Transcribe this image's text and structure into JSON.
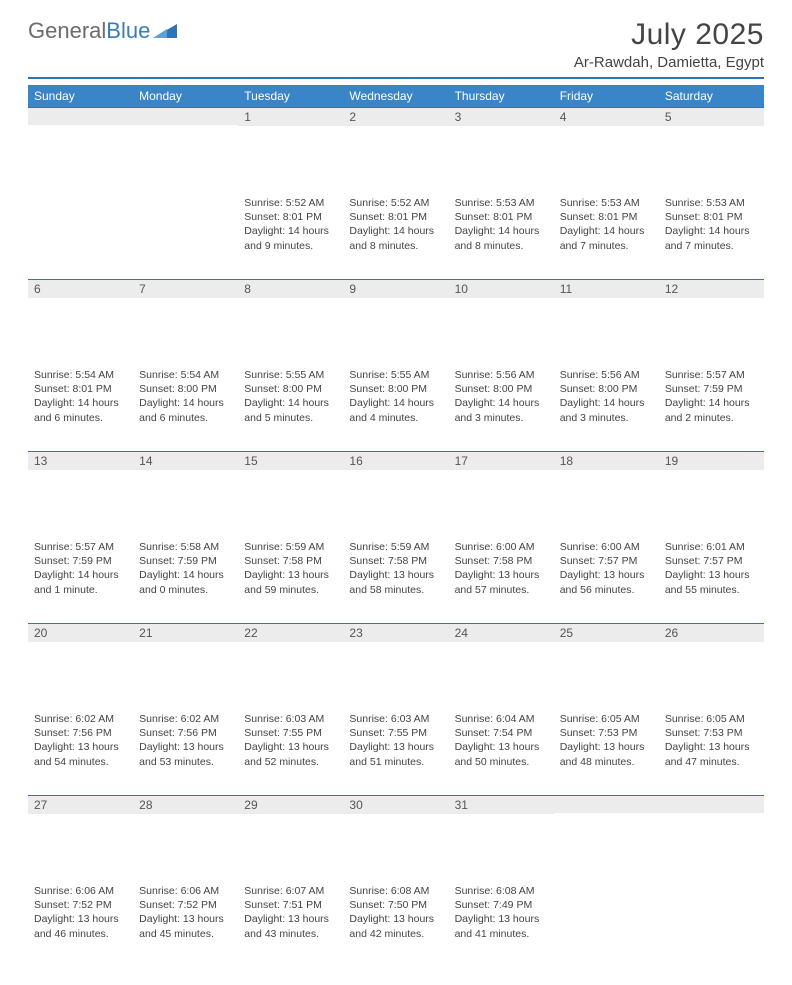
{
  "brand": {
    "part1": "General",
    "part2": "Blue"
  },
  "title": "July 2025",
  "location": "Ar-Rawdah, Damietta, Egypt",
  "colors": {
    "header_bg": "#3a84c8",
    "header_text": "#ffffff",
    "rule": "#2f74b5",
    "daynum_bg": "#ececec",
    "text": "#444444",
    "brand_grey": "#6b6b6b",
    "brand_blue": "#3a7abf"
  },
  "weekdays": [
    "Sunday",
    "Monday",
    "Tuesday",
    "Wednesday",
    "Thursday",
    "Friday",
    "Saturday"
  ],
  "weeks": [
    [
      null,
      null,
      {
        "n": "1",
        "sunrise": "5:52 AM",
        "sunset": "8:01 PM",
        "daylight": "14 hours and 9 minutes."
      },
      {
        "n": "2",
        "sunrise": "5:52 AM",
        "sunset": "8:01 PM",
        "daylight": "14 hours and 8 minutes."
      },
      {
        "n": "3",
        "sunrise": "5:53 AM",
        "sunset": "8:01 PM",
        "daylight": "14 hours and 8 minutes."
      },
      {
        "n": "4",
        "sunrise": "5:53 AM",
        "sunset": "8:01 PM",
        "daylight": "14 hours and 7 minutes."
      },
      {
        "n": "5",
        "sunrise": "5:53 AM",
        "sunset": "8:01 PM",
        "daylight": "14 hours and 7 minutes."
      }
    ],
    [
      {
        "n": "6",
        "sunrise": "5:54 AM",
        "sunset": "8:01 PM",
        "daylight": "14 hours and 6 minutes."
      },
      {
        "n": "7",
        "sunrise": "5:54 AM",
        "sunset": "8:00 PM",
        "daylight": "14 hours and 6 minutes."
      },
      {
        "n": "8",
        "sunrise": "5:55 AM",
        "sunset": "8:00 PM",
        "daylight": "14 hours and 5 minutes."
      },
      {
        "n": "9",
        "sunrise": "5:55 AM",
        "sunset": "8:00 PM",
        "daylight": "14 hours and 4 minutes."
      },
      {
        "n": "10",
        "sunrise": "5:56 AM",
        "sunset": "8:00 PM",
        "daylight": "14 hours and 3 minutes."
      },
      {
        "n": "11",
        "sunrise": "5:56 AM",
        "sunset": "8:00 PM",
        "daylight": "14 hours and 3 minutes."
      },
      {
        "n": "12",
        "sunrise": "5:57 AM",
        "sunset": "7:59 PM",
        "daylight": "14 hours and 2 minutes."
      }
    ],
    [
      {
        "n": "13",
        "sunrise": "5:57 AM",
        "sunset": "7:59 PM",
        "daylight": "14 hours and 1 minute."
      },
      {
        "n": "14",
        "sunrise": "5:58 AM",
        "sunset": "7:59 PM",
        "daylight": "14 hours and 0 minutes."
      },
      {
        "n": "15",
        "sunrise": "5:59 AM",
        "sunset": "7:58 PM",
        "daylight": "13 hours and 59 minutes."
      },
      {
        "n": "16",
        "sunrise": "5:59 AM",
        "sunset": "7:58 PM",
        "daylight": "13 hours and 58 minutes."
      },
      {
        "n": "17",
        "sunrise": "6:00 AM",
        "sunset": "7:58 PM",
        "daylight": "13 hours and 57 minutes."
      },
      {
        "n": "18",
        "sunrise": "6:00 AM",
        "sunset": "7:57 PM",
        "daylight": "13 hours and 56 minutes."
      },
      {
        "n": "19",
        "sunrise": "6:01 AM",
        "sunset": "7:57 PM",
        "daylight": "13 hours and 55 minutes."
      }
    ],
    [
      {
        "n": "20",
        "sunrise": "6:02 AM",
        "sunset": "7:56 PM",
        "daylight": "13 hours and 54 minutes."
      },
      {
        "n": "21",
        "sunrise": "6:02 AM",
        "sunset": "7:56 PM",
        "daylight": "13 hours and 53 minutes."
      },
      {
        "n": "22",
        "sunrise": "6:03 AM",
        "sunset": "7:55 PM",
        "daylight": "13 hours and 52 minutes."
      },
      {
        "n": "23",
        "sunrise": "6:03 AM",
        "sunset": "7:55 PM",
        "daylight": "13 hours and 51 minutes."
      },
      {
        "n": "24",
        "sunrise": "6:04 AM",
        "sunset": "7:54 PM",
        "daylight": "13 hours and 50 minutes."
      },
      {
        "n": "25",
        "sunrise": "6:05 AM",
        "sunset": "7:53 PM",
        "daylight": "13 hours and 48 minutes."
      },
      {
        "n": "26",
        "sunrise": "6:05 AM",
        "sunset": "7:53 PM",
        "daylight": "13 hours and 47 minutes."
      }
    ],
    [
      {
        "n": "27",
        "sunrise": "6:06 AM",
        "sunset": "7:52 PM",
        "daylight": "13 hours and 46 minutes."
      },
      {
        "n": "28",
        "sunrise": "6:06 AM",
        "sunset": "7:52 PM",
        "daylight": "13 hours and 45 minutes."
      },
      {
        "n": "29",
        "sunrise": "6:07 AM",
        "sunset": "7:51 PM",
        "daylight": "13 hours and 43 minutes."
      },
      {
        "n": "30",
        "sunrise": "6:08 AM",
        "sunset": "7:50 PM",
        "daylight": "13 hours and 42 minutes."
      },
      {
        "n": "31",
        "sunrise": "6:08 AM",
        "sunset": "7:49 PM",
        "daylight": "13 hours and 41 minutes."
      },
      null,
      null
    ]
  ],
  "labels": {
    "sunrise": "Sunrise:",
    "sunset": "Sunset:",
    "daylight": "Daylight:"
  }
}
